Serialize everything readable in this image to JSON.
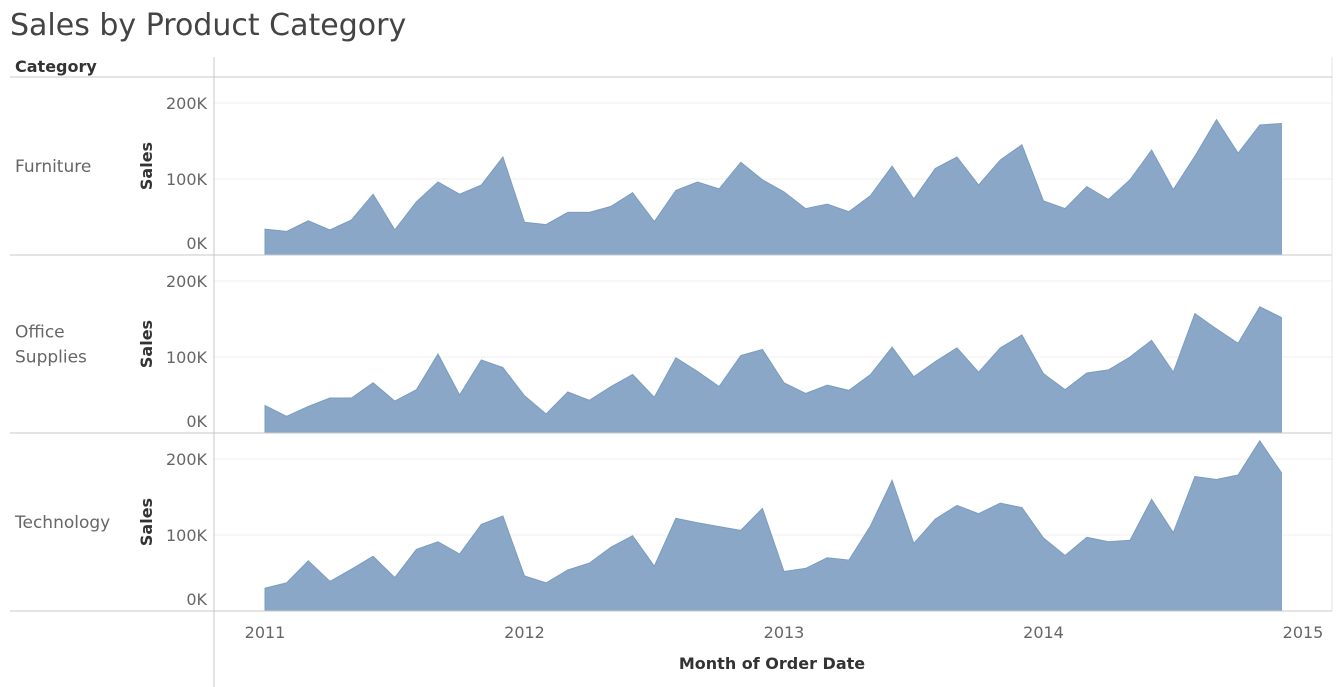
{
  "title": "Sales by Product Category",
  "colors": {
    "area_fill": "#8aa7c7",
    "area_stroke": "#7b9cc0",
    "rule": "#c8c8c8",
    "gridline": "#efefef",
    "text_dark": "#333333",
    "text_muted": "#666666"
  },
  "chart_data": {
    "type": "area",
    "title": "Sales by Product Category",
    "row_header": "Category",
    "xlabel": "Month of Order Date",
    "ylabel": "Sales",
    "x_ticks": [
      "2011",
      "2012",
      "2013",
      "2014",
      "2015"
    ],
    "y_ticks": [
      "0K",
      "100K",
      "200K"
    ],
    "ylim": [
      0,
      200000
    ],
    "grid": "horizontal",
    "x_start": "2011-01",
    "x_end": "2014-12",
    "series": [
      {
        "name": "Furniture",
        "label_lines": [
          "Furniture"
        ],
        "values": [
          34000,
          31000,
          45000,
          33000,
          46000,
          80000,
          33000,
          70000,
          96000,
          80000,
          92000,
          129000,
          43000,
          40000,
          56000,
          56000,
          64000,
          82000,
          44000,
          85000,
          96000,
          87000,
          122000,
          99000,
          83000,
          61000,
          67000,
          57000,
          78000,
          117000,
          74000,
          114000,
          129000,
          92000,
          125000,
          145000,
          71000,
          61000,
          90000,
          73000,
          99000,
          138000,
          86000,
          130000,
          178000,
          134000,
          171000,
          173000
        ]
      },
      {
        "name": "Office Supplies",
        "label_lines": [
          "Office",
          "Supplies"
        ],
        "values": [
          36000,
          22000,
          35000,
          46000,
          46000,
          66000,
          42000,
          57000,
          104000,
          50000,
          96000,
          86000,
          49000,
          25000,
          54000,
          43000,
          61000,
          77000,
          47000,
          99000,
          81000,
          61000,
          102000,
          110000,
          66000,
          52000,
          63000,
          56000,
          77000,
          113000,
          74000,
          94000,
          112000,
          80000,
          112000,
          129000,
          78000,
          57000,
          79000,
          83000,
          100000,
          122000,
          80000,
          157000,
          137000,
          118000,
          166000,
          152000
        ]
      },
      {
        "name": "Technology",
        "label_lines": [
          "Technology"
        ],
        "values": [
          30000,
          37000,
          66000,
          39000,
          55000,
          72000,
          44000,
          81000,
          91000,
          75000,
          114000,
          125000,
          46000,
          37000,
          54000,
          63000,
          84000,
          99000,
          59000,
          122000,
          116000,
          111000,
          106000,
          135000,
          52000,
          56000,
          70000,
          67000,
          112000,
          172000,
          89000,
          121000,
          139000,
          128000,
          142000,
          136000,
          96000,
          73000,
          97000,
          91000,
          93000,
          147000,
          103000,
          177000,
          173000,
          179000,
          224000,
          182000
        ]
      }
    ]
  }
}
